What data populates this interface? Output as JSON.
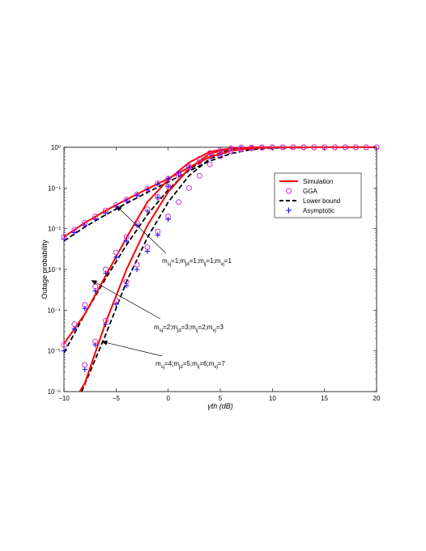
{
  "chart_data": {
    "type": "line",
    "title": "",
    "xlabel": "γth (dB)",
    "ylabel": "Outage probability",
    "xlim": [
      -10,
      20
    ],
    "ylim": [
      1e-06,
      1
    ],
    "yscale": "log",
    "xticks": [
      "−10",
      "−5",
      "0",
      "5",
      "10",
      "15",
      "20"
    ],
    "yticks": [
      "10⁻⁶",
      "10⁻⁵",
      "10⁻⁴",
      "10⁻³",
      "10⁻²",
      "10⁻¹",
      "10⁰"
    ],
    "grid": false,
    "legend_position": "right",
    "legend": [
      {
        "label": "Simulation",
        "style": "solid",
        "color": "#ff0000"
      },
      {
        "label": "GGA",
        "style": "circle",
        "color": "#cc33cc"
      },
      {
        "label": "Lower bound",
        "style": "dashed",
        "color": "#000000"
      },
      {
        "label": "Asymptotic",
        "style": "plus",
        "color": "#0000ff"
      }
    ],
    "groups": [
      {
        "label": "m_sj=1;m_jd=1;m_ij=1;m_vj=1",
        "simulation": {
          "x": [
            -10,
            -8,
            -6,
            -4,
            -2,
            0,
            2,
            4,
            6,
            8,
            10,
            12,
            14,
            16,
            18,
            20
          ],
          "y": [
            0.0063,
            0.014,
            0.028,
            0.052,
            0.095,
            0.17,
            0.32,
            0.58,
            0.82,
            0.94,
            0.985,
            0.996,
            0.999,
            1,
            1,
            1
          ]
        },
        "gga": {
          "x": [
            -10,
            -9,
            -8,
            -7,
            -6,
            -5,
            -4,
            -3,
            -2,
            -1,
            0,
            1,
            2,
            3,
            4,
            5,
            6,
            7,
            8,
            9,
            10,
            11,
            12,
            13,
            14,
            15,
            16,
            17,
            18,
            19,
            20
          ],
          "y": [
            0.0063,
            0.0095,
            0.014,
            0.02,
            0.028,
            0.038,
            0.052,
            0.07,
            0.095,
            0.13,
            0.17,
            0.23,
            0.32,
            0.43,
            0.58,
            0.72,
            0.82,
            0.89,
            0.94,
            0.97,
            0.985,
            0.992,
            0.996,
            0.998,
            0.999,
            1,
            1,
            1,
            1,
            1,
            1
          ]
        },
        "lower_bound": {
          "x": [
            -10,
            -8,
            -6,
            -4,
            -2,
            0,
            2,
            4,
            6,
            8,
            10,
            14,
            20
          ],
          "y": [
            0.005,
            0.011,
            0.022,
            0.042,
            0.078,
            0.14,
            0.26,
            0.46,
            0.7,
            0.88,
            0.96,
            0.995,
            1
          ]
        },
        "asymptotic": {
          "x": [
            -10,
            -9,
            -8,
            -7,
            -6,
            -5,
            -4,
            -3,
            -2,
            -1,
            0,
            1,
            2
          ],
          "y": [
            0.0055,
            0.008,
            0.012,
            0.017,
            0.024,
            0.034,
            0.048,
            0.066,
            0.09,
            0.125,
            0.17,
            0.23,
            0.32
          ]
        }
      },
      {
        "label": "m_sj=2;m_jd=3;m_ij=2;m_vj=3",
        "simulation": {
          "x": [
            -10,
            -8,
            -6,
            -4,
            -2,
            0,
            2,
            4,
            6,
            8,
            10,
            14,
            20
          ],
          "y": [
            1.5e-05,
            8e-05,
            0.0007,
            0.006,
            0.045,
            0.16,
            0.42,
            0.78,
            0.94,
            0.99,
            0.998,
            1,
            1
          ]
        },
        "gga": {
          "x": [
            -10,
            -9,
            -8,
            -7,
            -6,
            -5,
            -4,
            -3,
            -2,
            -1,
            0,
            1,
            2,
            3,
            4,
            5,
            6,
            7,
            8,
            9,
            10,
            11,
            12,
            13,
            14,
            15,
            16,
            17,
            18,
            19,
            20
          ],
          "y": [
            1.4e-05,
            4.5e-05,
            0.000135,
            0.00038,
            0.001,
            0.0026,
            0.0063,
            0.014,
            0.03,
            0.06,
            0.11,
            0.2,
            0.34,
            0.52,
            0.72,
            0.86,
            0.94,
            0.975,
            0.99,
            0.996,
            0.998,
            0.999,
            1,
            1,
            1,
            1,
            1,
            1,
            1,
            1,
            1
          ]
        },
        "lower_bound": {
          "x": [
            -10,
            -8,
            -6,
            -4,
            -2,
            0,
            2,
            4,
            6,
            8,
            10,
            14,
            20
          ],
          "y": [
            9e-06,
            8e-05,
            0.0006,
            0.004,
            0.022,
            0.09,
            0.28,
            0.6,
            0.86,
            0.97,
            0.995,
            1,
            1
          ]
        },
        "asymptotic": {
          "x": [
            -10,
            -9,
            -8,
            -7,
            -6,
            -5,
            -4,
            -3,
            -2,
            -1,
            0
          ],
          "y": [
            1e-05,
            3.5e-05,
            0.00011,
            0.0003,
            0.0008,
            0.002,
            0.005,
            0.012,
            0.027,
            0.058,
            0.11
          ]
        }
      },
      {
        "label": "m_sj=4;m_jd=5;m_ij=6;m_vj=7",
        "simulation": {
          "x": [
            -8.5,
            -8,
            -6,
            -4,
            -2,
            0,
            2,
            4,
            6,
            8,
            10,
            14,
            20
          ],
          "y": [
            1e-06,
            1.6e-06,
            5e-05,
            0.001,
            0.012,
            0.08,
            0.3,
            0.7,
            0.93,
            0.99,
            0.999,
            1,
            1
          ]
        },
        "gga": {
          "x": [
            -8,
            -7,
            -6,
            -5,
            -4,
            -3,
            -2,
            -1,
            0,
            1,
            2,
            3,
            4,
            5,
            6,
            7,
            8,
            9,
            10,
            11,
            12,
            13,
            14,
            15,
            16,
            17,
            18,
            19,
            20
          ],
          "y": [
            4.5e-06,
            1.7e-05,
            5.5e-05,
            0.00017,
            0.0005,
            0.0013,
            0.0035,
            0.0085,
            0.02,
            0.045,
            0.1,
            0.2,
            0.38,
            0.6,
            0.8,
            0.92,
            0.97,
            0.99,
            0.997,
            0.999,
            1,
            1,
            1,
            1,
            1,
            1,
            1,
            1,
            1
          ]
        },
        "lower_bound": {
          "x": [
            -8.3,
            -6,
            -4,
            -2,
            0,
            2,
            4,
            6,
            8,
            10,
            14,
            20
          ],
          "y": [
            1e-06,
            2.5e-05,
            0.0005,
            0.006,
            0.045,
            0.2,
            0.52,
            0.82,
            0.96,
            0.995,
            1,
            1
          ]
        },
        "asymptotic": {
          "x": [
            -8,
            -7,
            -6,
            -5,
            -4,
            -3,
            -2,
            -1,
            0
          ],
          "y": [
            3.5e-06,
            1.4e-05,
            4.5e-05,
            0.00014,
            0.0004,
            0.001,
            0.0028,
            0.007,
            0.017
          ]
        }
      }
    ],
    "annotations": [
      {
        "text": "m_sj=1;m_jd=1;m_ij=1;m_vj=1",
        "target": [
          -5,
          0.037
        ]
      },
      {
        "text": "m_sj=2;m_jd=3;m_ij=2;m_vj=3",
        "target": [
          -7.4,
          0.00055
        ]
      },
      {
        "text": "m_sj=4;m_jd=5;m_ij=6;m_vj=7",
        "target": [
          -6.4,
          1.7e-05
        ]
      }
    ]
  }
}
